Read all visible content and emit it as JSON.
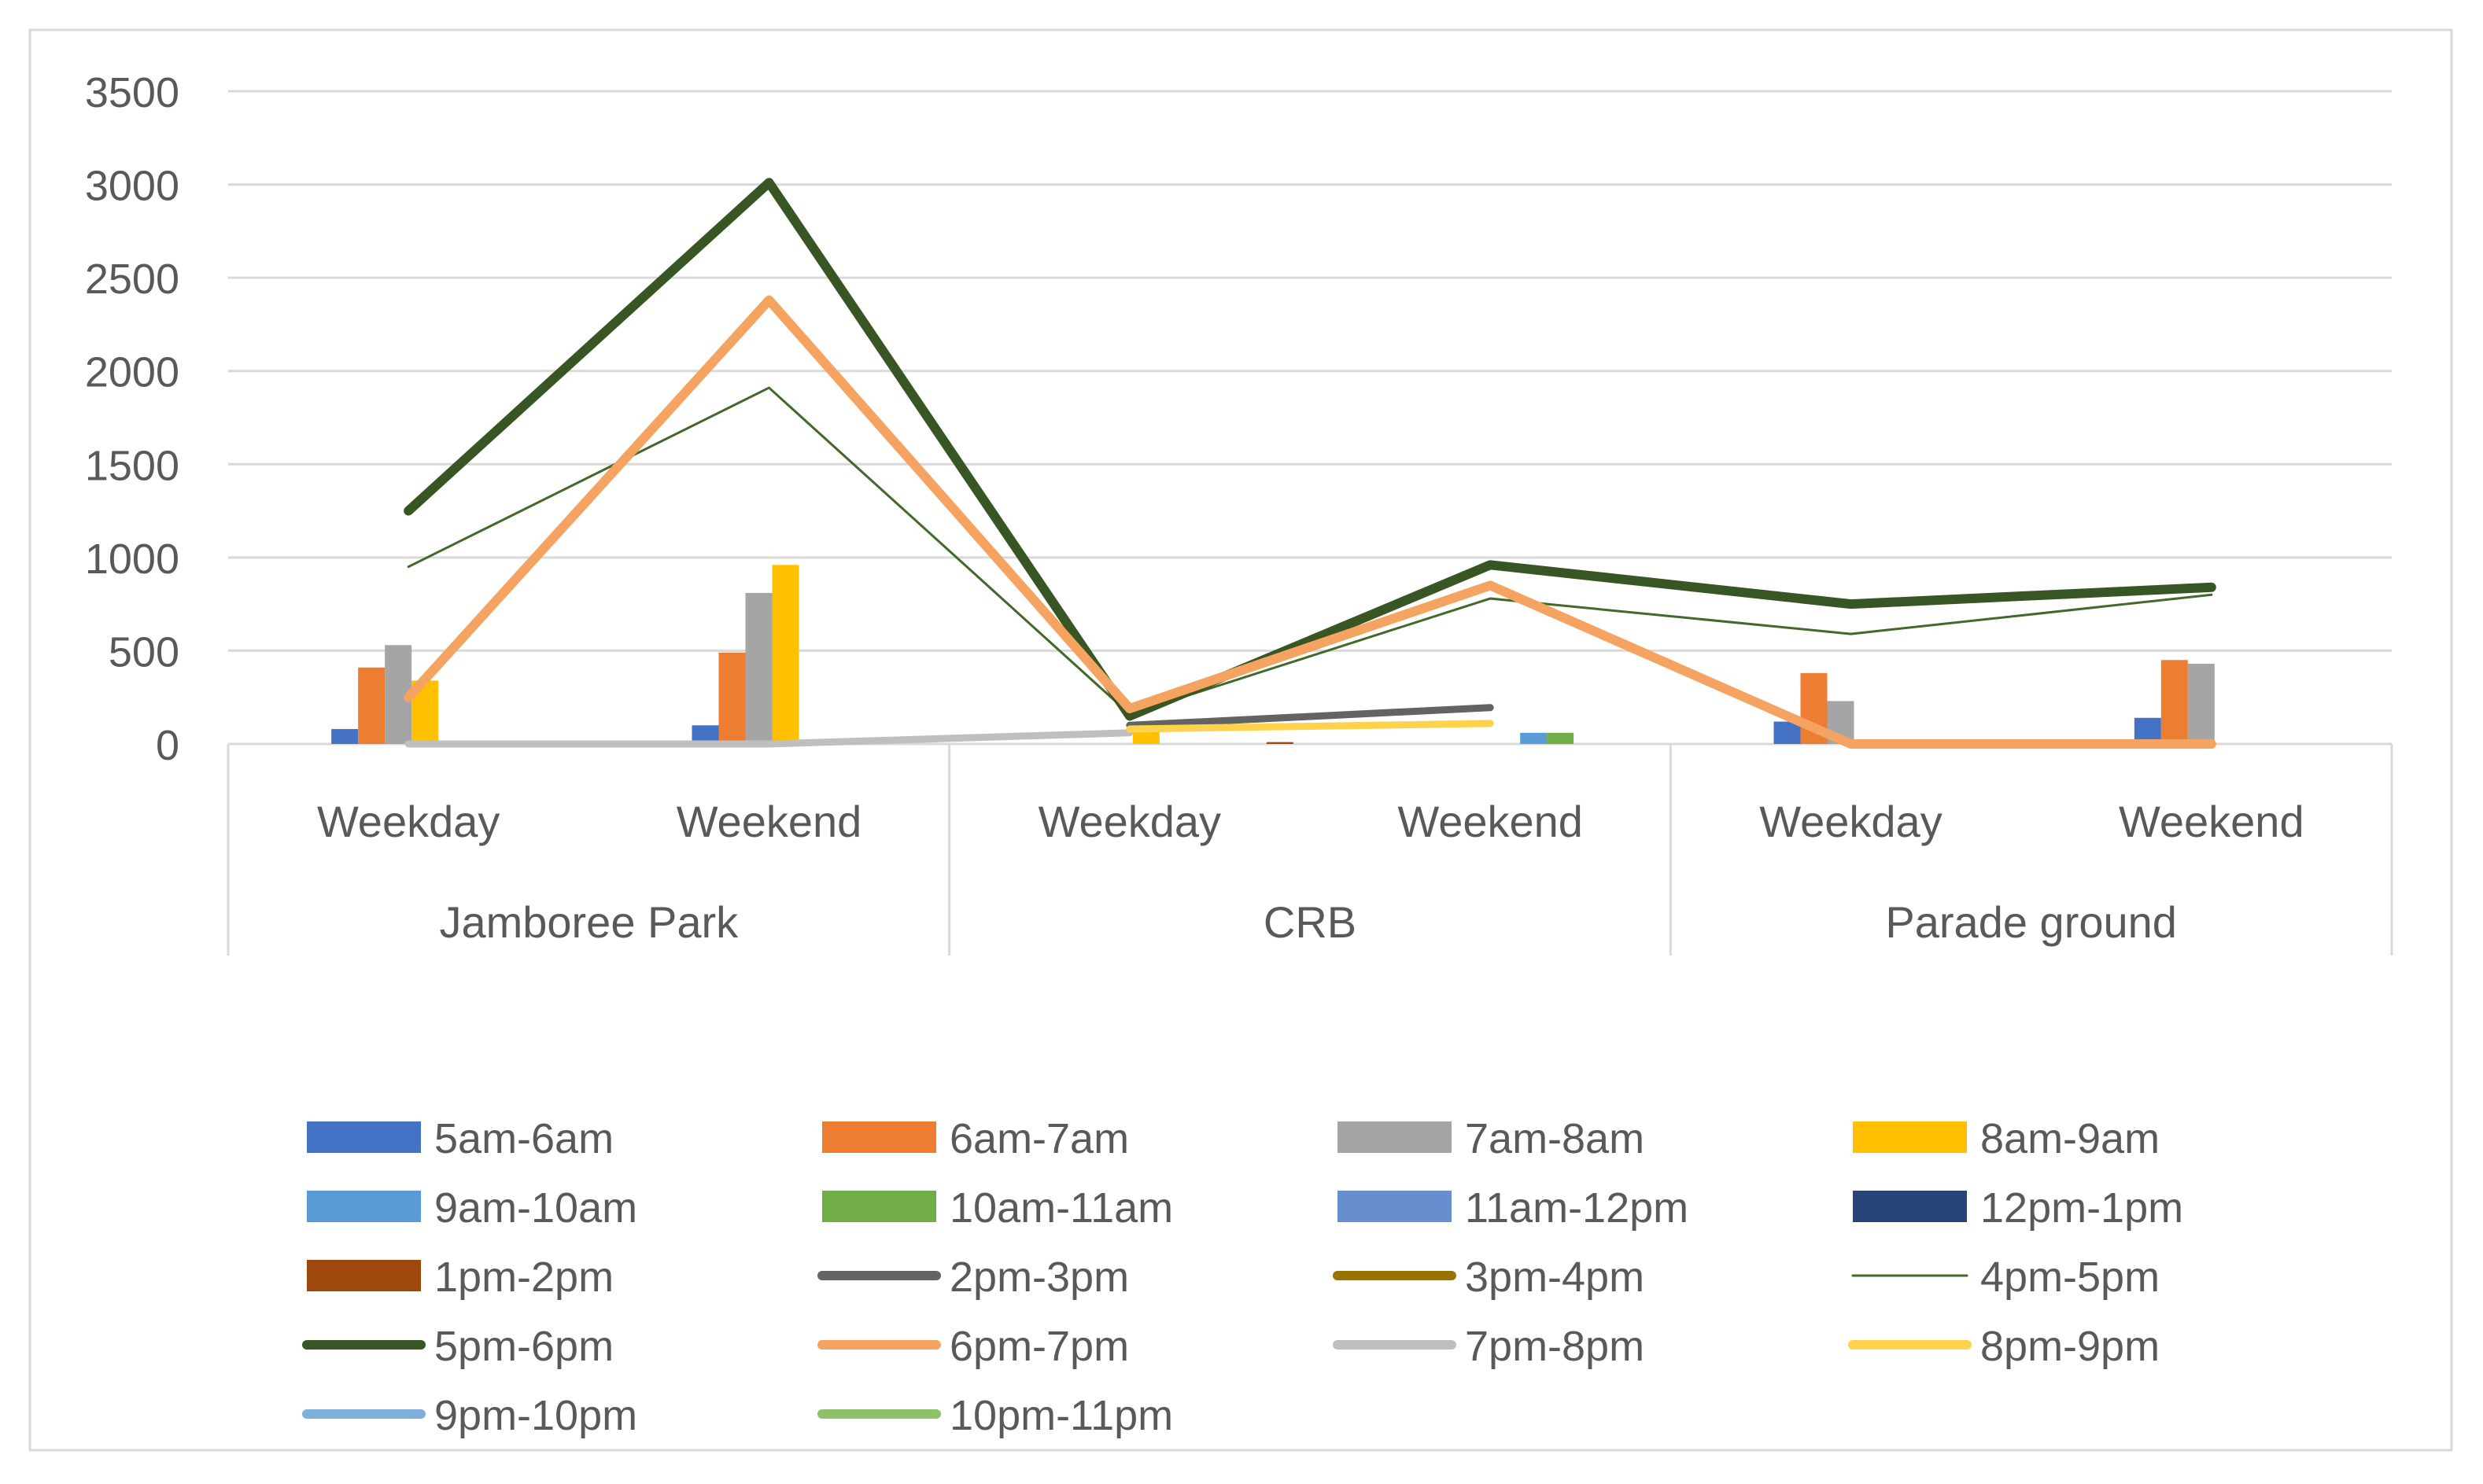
{
  "chart_data": {
    "type": "bar",
    "title": "",
    "xlabel": "",
    "ylabel": "",
    "ylim": [
      0,
      3500
    ],
    "y_ticks": [
      0,
      500,
      1000,
      1500,
      2000,
      2500,
      3000,
      3500
    ],
    "grid": true,
    "legend_position": "bottom",
    "groups": [
      {
        "label": "Jamboree Park",
        "categories": [
          "Weekday",
          "Weekend"
        ]
      },
      {
        "label": "CRB",
        "categories": [
          "Weekday",
          "Weekend"
        ]
      },
      {
        "label": "Parade ground",
        "categories": [
          "Weekday",
          "Weekend"
        ]
      }
    ],
    "bar_series": [
      {
        "name": "5am-6am",
        "color": "#4472C4",
        "values": [
          80,
          100,
          0,
          0,
          120,
          140
        ]
      },
      {
        "name": "6am-7am",
        "color": "#ED7D31",
        "values": [
          410,
          490,
          0,
          0,
          380,
          450
        ]
      },
      {
        "name": "7am-8am",
        "color": "#A5A5A5",
        "values": [
          530,
          810,
          0,
          0,
          230,
          430
        ]
      },
      {
        "name": "8am-9am",
        "color": "#FFC000",
        "values": [
          340,
          960,
          70,
          0,
          0,
          0
        ]
      },
      {
        "name": "9am-10am",
        "color": "#5B9BD5",
        "values": [
          0,
          0,
          0,
          60,
          0,
          0
        ]
      },
      {
        "name": "10am-11am",
        "color": "#70AD47",
        "values": [
          0,
          0,
          0,
          60,
          0,
          0
        ]
      },
      {
        "name": "11am-12pm",
        "color": "#698ED0",
        "values": [
          0,
          0,
          0,
          0,
          0,
          0
        ]
      },
      {
        "name": "12pm-1pm",
        "color": "#264478",
        "values": [
          0,
          0,
          0,
          0,
          0,
          0
        ]
      },
      {
        "name": "1pm-2pm",
        "color": "#9E480E",
        "values": [
          0,
          0,
          10,
          0,
          0,
          0
        ]
      }
    ],
    "line_series": [
      {
        "name": "2pm-3pm",
        "color": "#636363",
        "width": 9,
        "values": [
          null,
          null,
          100,
          195,
          null,
          null
        ]
      },
      {
        "name": "3pm-4pm",
        "color": "#997300",
        "width": 9,
        "values": [
          null,
          null,
          null,
          null,
          null,
          null
        ]
      },
      {
        "name": "4pm-5pm",
        "color": "#43682B",
        "width": 3,
        "values": [
          950,
          1910,
          160,
          780,
          590,
          800
        ]
      },
      {
        "name": "5pm-6pm",
        "color": "#375623",
        "width": 12,
        "values": [
          1250,
          3010,
          150,
          960,
          750,
          840
        ]
      },
      {
        "name": "6pm-7pm",
        "color": "#F4A460",
        "width": 12,
        "values": [
          250,
          2380,
          190,
          850,
          0,
          0
        ]
      },
      {
        "name": "7pm-8pm",
        "color": "#BFBFBF",
        "width": 9,
        "values": [
          0,
          0,
          60,
          null,
          null,
          null
        ]
      },
      {
        "name": "8pm-9pm",
        "color": "#FFD24C",
        "width": 9,
        "values": [
          null,
          null,
          80,
          110,
          null,
          null
        ]
      },
      {
        "name": "9pm-10pm",
        "color": "#7FAFDD",
        "width": 9,
        "values": [
          null,
          null,
          null,
          null,
          null,
          null
        ]
      },
      {
        "name": "10pm-11pm",
        "color": "#8CC168",
        "width": 9,
        "values": [
          null,
          null,
          null,
          null,
          null,
          null
        ]
      }
    ],
    "legend": [
      {
        "name": "5am-6am",
        "kind": "box",
        "color": "#4472C4"
      },
      {
        "name": "6am-7am",
        "kind": "box",
        "color": "#ED7D31"
      },
      {
        "name": "7am-8am",
        "kind": "box",
        "color": "#A5A5A5"
      },
      {
        "name": "8am-9am",
        "kind": "box",
        "color": "#FFC000"
      },
      {
        "name": "9am-10am",
        "kind": "box",
        "color": "#5B9BD5"
      },
      {
        "name": "10am-11am",
        "kind": "box",
        "color": "#70AD47"
      },
      {
        "name": "11am-12pm",
        "kind": "box",
        "color": "#698ED0"
      },
      {
        "name": "12pm-1pm",
        "kind": "box",
        "color": "#264478"
      },
      {
        "name": "1pm-2pm",
        "kind": "box",
        "color": "#9E480E"
      },
      {
        "name": "2pm-3pm",
        "kind": "line",
        "color": "#636363"
      },
      {
        "name": "3pm-4pm",
        "kind": "line",
        "color": "#997300"
      },
      {
        "name": "4pm-5pm",
        "kind": "thinline",
        "color": "#43682B"
      },
      {
        "name": "5pm-6pm",
        "kind": "line",
        "color": "#375623"
      },
      {
        "name": "6pm-7pm",
        "kind": "line",
        "color": "#F4A460"
      },
      {
        "name": "7pm-8pm",
        "kind": "line",
        "color": "#BFBFBF"
      },
      {
        "name": "8pm-9pm",
        "kind": "line",
        "color": "#FFD24C"
      },
      {
        "name": "9pm-10pm",
        "kind": "line",
        "color": "#7FAFDD"
      },
      {
        "name": "10pm-11pm",
        "kind": "line",
        "color": "#8CC168"
      }
    ]
  }
}
